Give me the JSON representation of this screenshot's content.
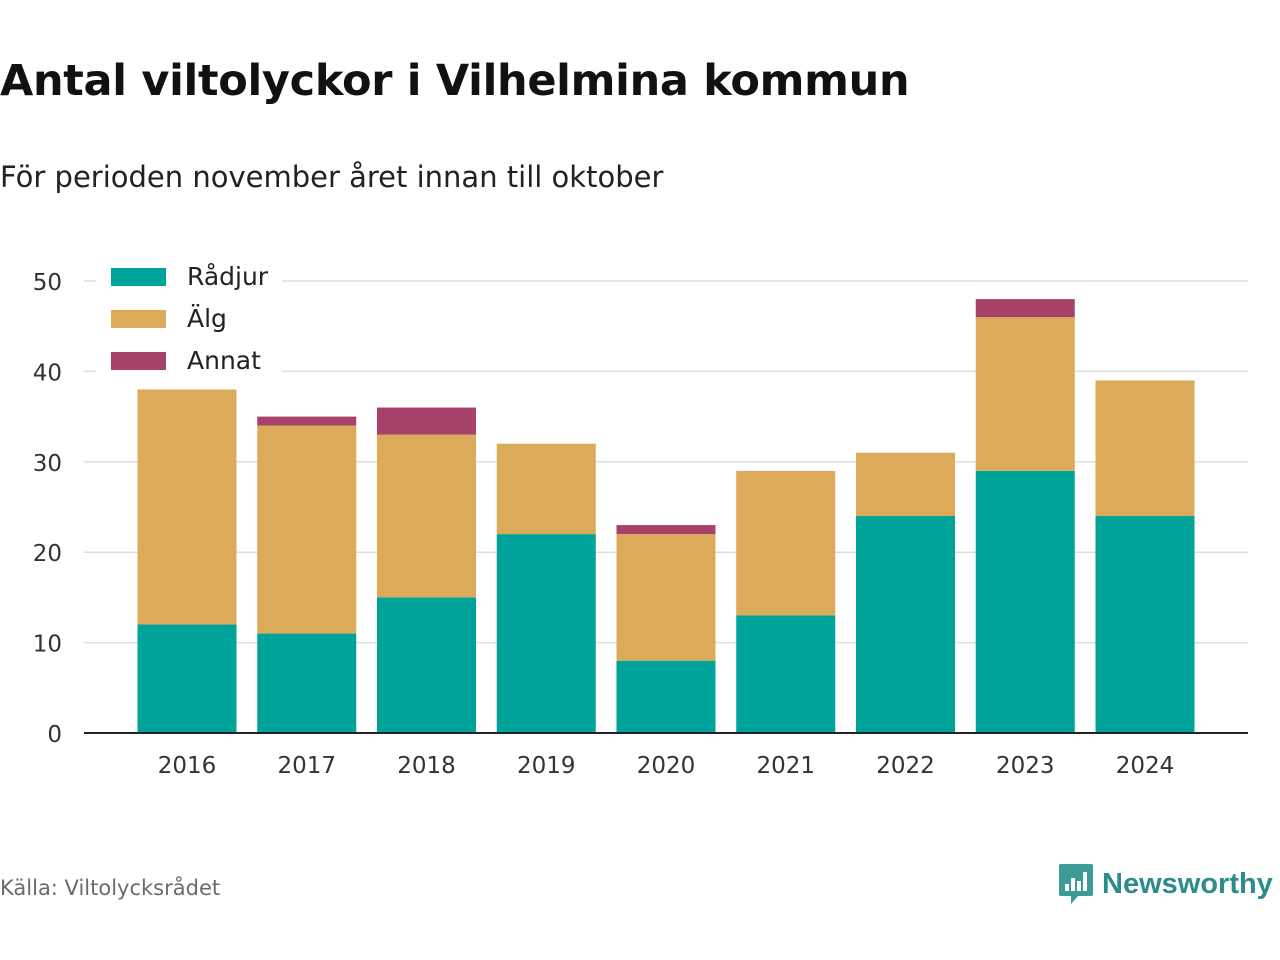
{
  "title": "Antal viltolyckor i Vilhelmina kommun",
  "subtitle": "För perioden november året innan till oktober",
  "source": "Källa: Viltolycksrådet",
  "brand": "Newsworthy",
  "colors": {
    "radjur": "#00a39a",
    "alg": "#dbab5a",
    "annat": "#a8426a",
    "grid": "#dddddd",
    "axis": "#222222",
    "brand": "#2c8c8a"
  },
  "chart_data": {
    "type": "bar",
    "stacked": true,
    "categories": [
      "2016",
      "2017",
      "2018",
      "2019",
      "2020",
      "2021",
      "2022",
      "2023",
      "2024"
    ],
    "series": [
      {
        "name": "Rådjur",
        "color": "#00a39a",
        "values": [
          12,
          11,
          15,
          22,
          8,
          13,
          24,
          29,
          24
        ]
      },
      {
        "name": "Älg",
        "color": "#dbab5a",
        "values": [
          26,
          23,
          18,
          10,
          14,
          16,
          7,
          17,
          15
        ]
      },
      {
        "name": "Annat",
        "color": "#a8426a",
        "values": [
          0,
          1,
          3,
          0,
          1,
          0,
          0,
          2,
          0
        ]
      }
    ],
    "ylim": [
      0,
      50
    ],
    "yticks": [
      0,
      10,
      20,
      30,
      40,
      50
    ],
    "grid": true,
    "legend_position": "top-left"
  }
}
